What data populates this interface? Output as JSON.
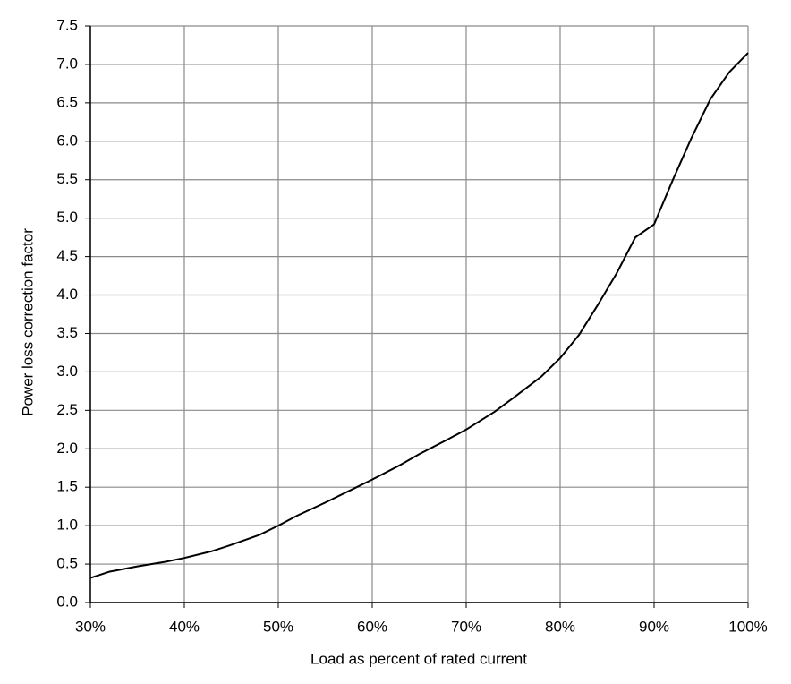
{
  "chart_data": {
    "type": "line",
    "x_label": "Load as percent of rated current",
    "y_label": "Power loss correction factor",
    "x": [
      30,
      32,
      35,
      38,
      40,
      43,
      45,
      48,
      50,
      52,
      55,
      58,
      60,
      63,
      65,
      68,
      70,
      73,
      75,
      78,
      80,
      82,
      84,
      86,
      88,
      90,
      92,
      94,
      96,
      98,
      100
    ],
    "values": [
      0.32,
      0.4,
      0.47,
      0.53,
      0.58,
      0.67,
      0.75,
      0.88,
      1.0,
      1.13,
      1.3,
      1.48,
      1.6,
      1.79,
      1.93,
      2.12,
      2.25,
      2.48,
      2.66,
      2.94,
      3.18,
      3.48,
      3.87,
      4.28,
      4.75,
      4.92,
      5.5,
      6.05,
      6.55,
      6.9,
      7.15
    ],
    "color": "#000000",
    "xlim": [
      30,
      100
    ],
    "xticks": [
      {
        "value": 30,
        "label": "30%"
      },
      {
        "value": 40,
        "label": "40%"
      },
      {
        "value": 50,
        "label": "50%"
      },
      {
        "value": 60,
        "label": "60%"
      },
      {
        "value": 70,
        "label": "70%"
      },
      {
        "value": 80,
        "label": "80%"
      },
      {
        "value": 90,
        "label": "90%"
      },
      {
        "value": 100,
        "label": "100%"
      }
    ],
    "ylim": [
      0,
      7.5
    ],
    "yticks": [
      {
        "value": 0,
        "label": "0.0"
      },
      0.5,
      {
        "value": 1,
        "label": "1.0"
      },
      1.5,
      {
        "value": 2,
        "label": "2.0"
      },
      2.5,
      {
        "value": 3,
        "label": "3.0"
      },
      3.5,
      {
        "value": 4,
        "label": "4.0"
      },
      4.5,
      {
        "value": 5,
        "label": "5.0"
      },
      5.5,
      {
        "value": 6,
        "label": "6.0"
      },
      6.5,
      {
        "value": 7,
        "label": "7.0"
      },
      7.5
    ],
    "grid": true
  }
}
